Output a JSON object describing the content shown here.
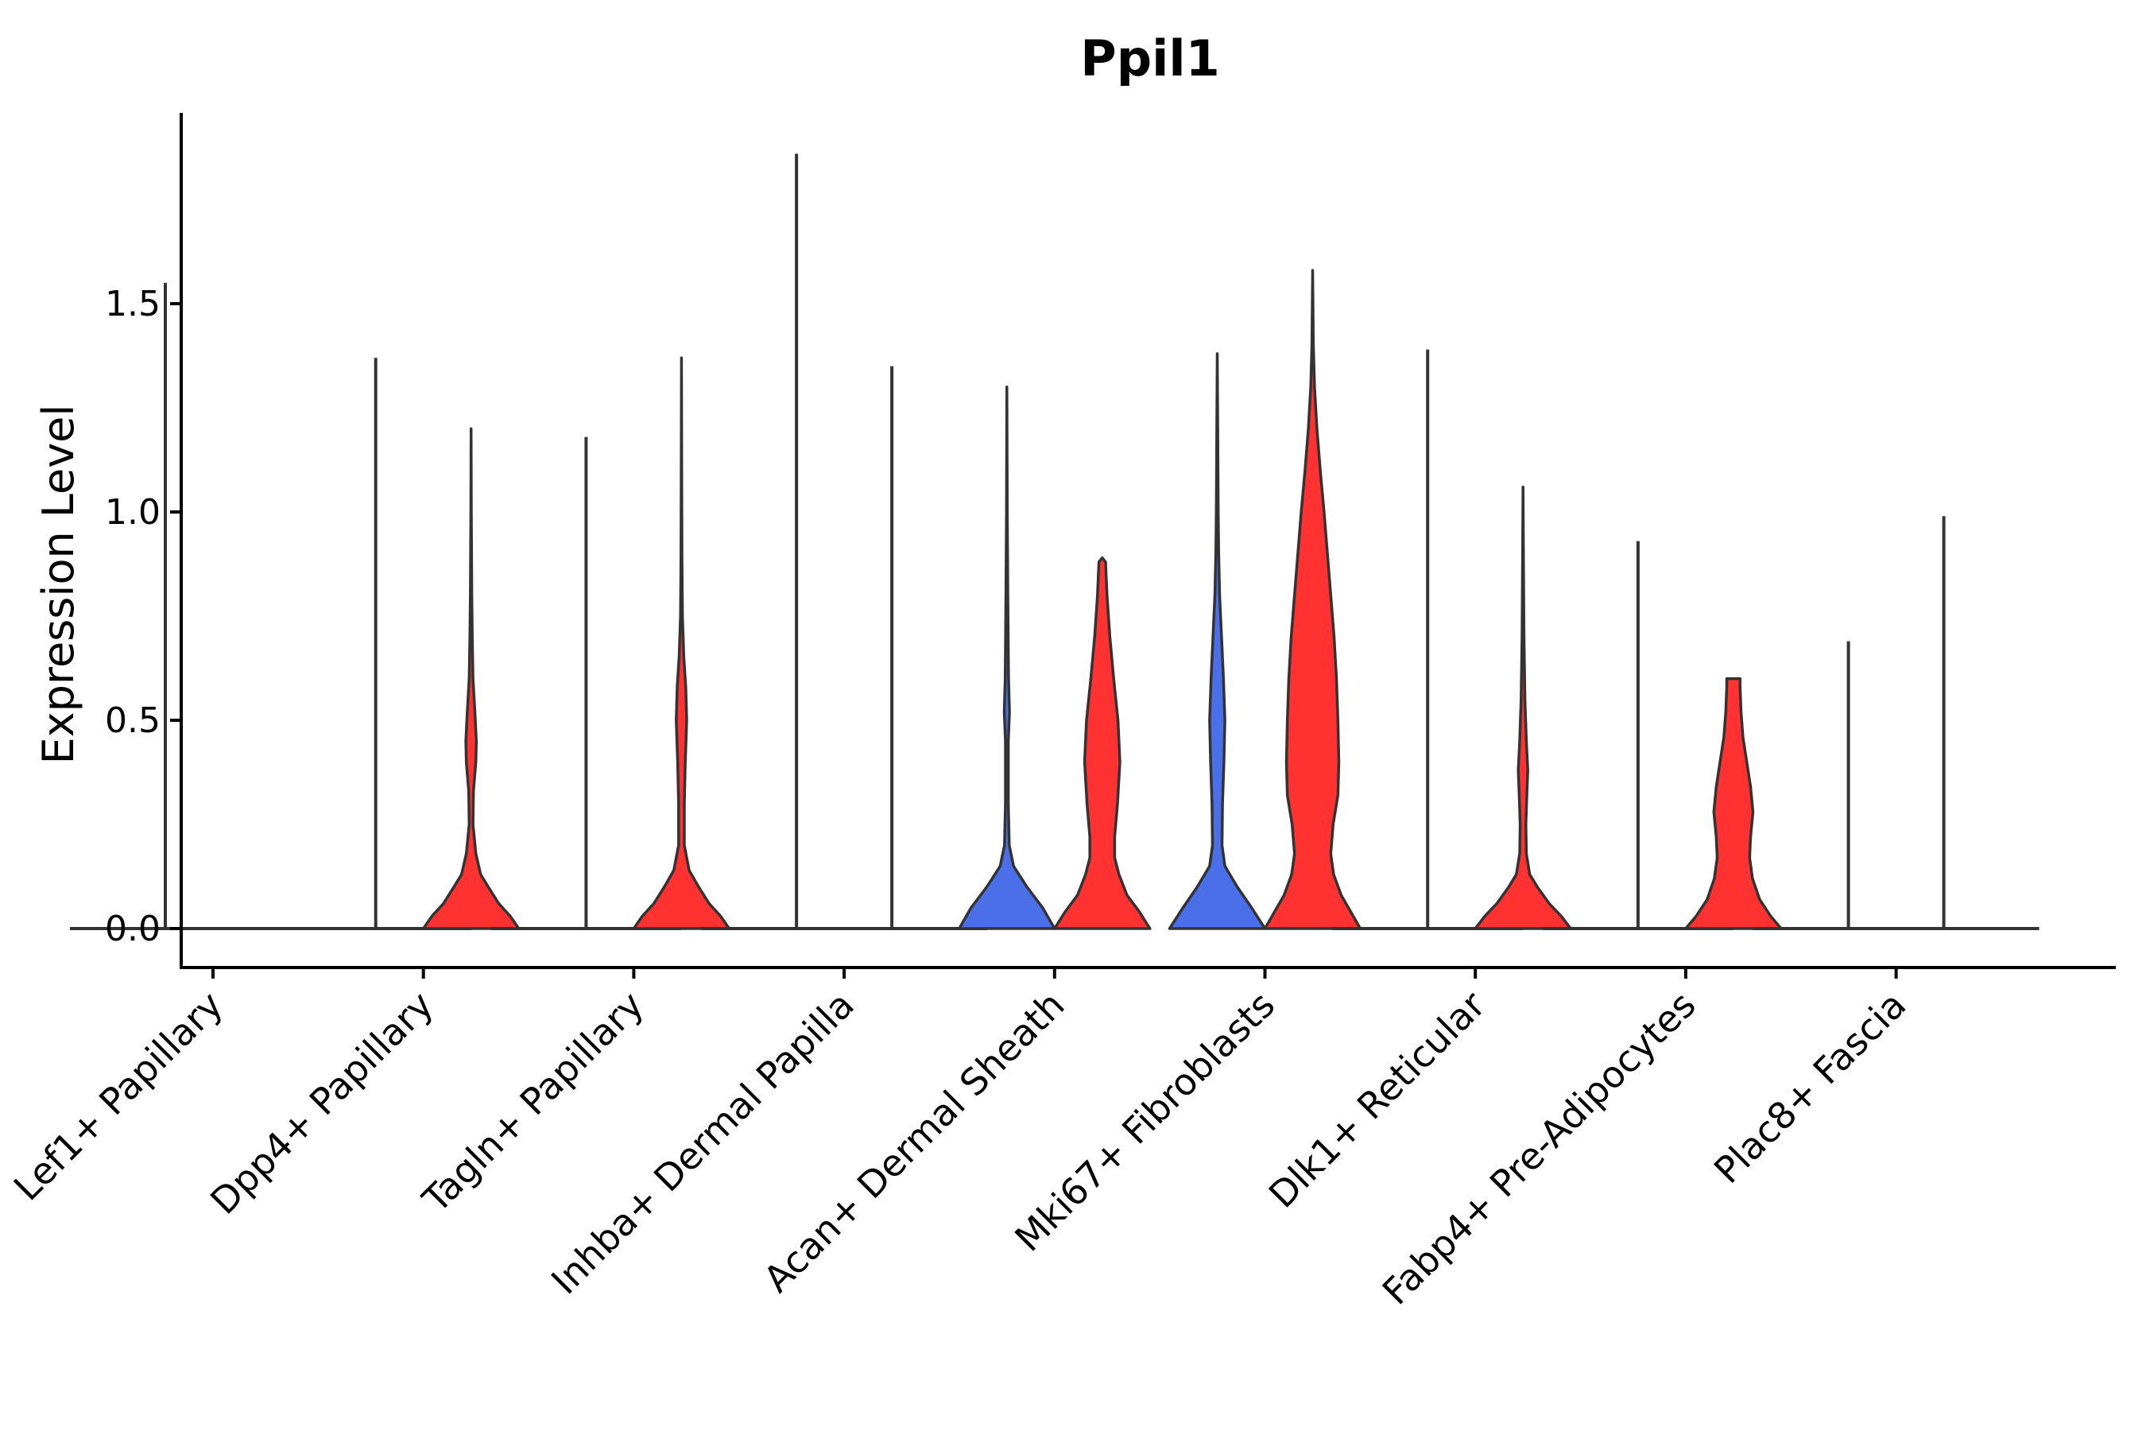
{
  "chart_data": {
    "type": "violin",
    "title": "Ppil1",
    "xlabel": "",
    "ylabel": "Expression Level",
    "ylim": [
      -0.09,
      1.95
    ],
    "yticks": [
      0.0,
      0.5,
      1.0,
      1.5
    ],
    "ytick_labels": [
      "0.0",
      "0.5",
      "1.0",
      "1.5"
    ],
    "grid": false,
    "legend": "none",
    "colors": {
      "group_a": "#4a6fe8",
      "group_b": "#ff3131",
      "outline": "#333333",
      "axis": "#000000"
    },
    "categories": [
      "Lef1+ Papillary",
      "Dpp4+ Papillary",
      "Tagln+ Papillary",
      "Inhba+ Dermal Papilla",
      "Acan+ Dermal Sheath",
      "Mki67+ Fibroblasts",
      "Dlk1+ Reticular",
      "Fabp4+ Pre-Adipocytes",
      "Plac8+ Fascia"
    ],
    "series": [
      {
        "name": "left",
        "color": "#4a6fe8",
        "violins": [
          {
            "max": 1.55,
            "shape": "flat"
          },
          {
            "max": 1.37,
            "shape": "flat"
          },
          {
            "max": 1.18,
            "shape": "flat"
          },
          {
            "max": 1.86,
            "shape": "flat"
          },
          {
            "max": 1.3,
            "shape": [
              [
                0,
                1.0
              ],
              [
                0.05,
                0.75
              ],
              [
                0.1,
                0.42
              ],
              [
                0.15,
                0.14
              ],
              [
                0.2,
                0.05
              ],
              [
                0.3,
                0.03
              ],
              [
                0.45,
                0.03
              ],
              [
                0.52,
                0.055
              ],
              [
                0.6,
                0.035
              ],
              [
                0.8,
                0.02
              ],
              [
                1.0,
                0.008
              ],
              [
                1.3,
                0
              ]
            ]
          },
          {
            "max": 1.38,
            "shape": [
              [
                0,
                1.0
              ],
              [
                0.05,
                0.72
              ],
              [
                0.1,
                0.42
              ],
              [
                0.15,
                0.16
              ],
              [
                0.2,
                0.1
              ],
              [
                0.3,
                0.11
              ],
              [
                0.4,
                0.14
              ],
              [
                0.5,
                0.16
              ],
              [
                0.6,
                0.13
              ],
              [
                0.7,
                0.09
              ],
              [
                0.8,
                0.05
              ],
              [
                0.9,
                0.03
              ],
              [
                1.0,
                0.02
              ],
              [
                1.2,
                0.01
              ],
              [
                1.38,
                0
              ]
            ]
          },
          {
            "max": 1.39,
            "shape": "flat"
          },
          {
            "max": 0.93,
            "shape": "flat"
          },
          {
            "max": 0.69,
            "shape": "flat"
          }
        ]
      },
      {
        "name": "right",
        "color": "#ff3131",
        "violins": [
          {
            "max": 0.0,
            "shape": "flat"
          },
          {
            "max": 1.2,
            "shape": [
              [
                0,
                1.0
              ],
              [
                0.03,
                0.82
              ],
              [
                0.06,
                0.58
              ],
              [
                0.1,
                0.36
              ],
              [
                0.13,
                0.2
              ],
              [
                0.18,
                0.1
              ],
              [
                0.25,
                0.04
              ],
              [
                0.33,
                0.05
              ],
              [
                0.4,
                0.1
              ],
              [
                0.45,
                0.11
              ],
              [
                0.52,
                0.08
              ],
              [
                0.6,
                0.04
              ],
              [
                0.7,
                0.025
              ],
              [
                0.8,
                0.015
              ],
              [
                1.0,
                0.005
              ],
              [
                1.2,
                0
              ]
            ]
          },
          {
            "max": 1.37,
            "shape": [
              [
                0,
                1.0
              ],
              [
                0.03,
                0.82
              ],
              [
                0.06,
                0.58
              ],
              [
                0.1,
                0.36
              ],
              [
                0.14,
                0.16
              ],
              [
                0.2,
                0.06
              ],
              [
                0.3,
                0.06
              ],
              [
                0.4,
                0.08
              ],
              [
                0.5,
                0.11
              ],
              [
                0.58,
                0.09
              ],
              [
                0.65,
                0.05
              ],
              [
                0.75,
                0.02
              ],
              [
                0.9,
                0.01
              ],
              [
                1.1,
                0.005
              ],
              [
                1.37,
                0
              ]
            ]
          },
          {
            "max": 1.35,
            "shape": "flat"
          },
          {
            "max": 0.89,
            "shape": [
              [
                0,
                1.0
              ],
              [
                0.04,
                0.78
              ],
              [
                0.08,
                0.52
              ],
              [
                0.13,
                0.35
              ],
              [
                0.17,
                0.26
              ],
              [
                0.22,
                0.26
              ],
              [
                0.3,
                0.32
              ],
              [
                0.4,
                0.37
              ],
              [
                0.5,
                0.33
              ],
              [
                0.6,
                0.24
              ],
              [
                0.7,
                0.16
              ],
              [
                0.8,
                0.1
              ],
              [
                0.88,
                0.07
              ],
              [
                0.89,
                0
              ]
            ]
          },
          {
            "max": 1.58,
            "shape": [
              [
                0,
                1.0
              ],
              [
                0.04,
                0.8
              ],
              [
                0.08,
                0.6
              ],
              [
                0.13,
                0.44
              ],
              [
                0.18,
                0.38
              ],
              [
                0.25,
                0.43
              ],
              [
                0.32,
                0.53
              ],
              [
                0.4,
                0.55
              ],
              [
                0.5,
                0.53
              ],
              [
                0.6,
                0.5
              ],
              [
                0.7,
                0.45
              ],
              [
                0.8,
                0.38
              ],
              [
                0.9,
                0.31
              ],
              [
                1.0,
                0.24
              ],
              [
                1.1,
                0.16
              ],
              [
                1.2,
                0.09
              ],
              [
                1.3,
                0.04
              ],
              [
                1.4,
                0.015
              ],
              [
                1.58,
                0
              ]
            ]
          },
          {
            "max": 1.06,
            "shape": [
              [
                0,
                1.0
              ],
              [
                0.03,
                0.8
              ],
              [
                0.06,
                0.55
              ],
              [
                0.1,
                0.3
              ],
              [
                0.13,
                0.14
              ],
              [
                0.18,
                0.07
              ],
              [
                0.25,
                0.06
              ],
              [
                0.32,
                0.08
              ],
              [
                0.38,
                0.1
              ],
              [
                0.45,
                0.07
              ],
              [
                0.55,
                0.04
              ],
              [
                0.7,
                0.02
              ],
              [
                0.9,
                0.008
              ],
              [
                1.06,
                0
              ]
            ]
          },
          {
            "max": 0.6,
            "shape": [
              [
                0,
                1.0
              ],
              [
                0.03,
                0.78
              ],
              [
                0.07,
                0.55
              ],
              [
                0.12,
                0.4
              ],
              [
                0.17,
                0.34
              ],
              [
                0.22,
                0.36
              ],
              [
                0.28,
                0.41
              ],
              [
                0.34,
                0.36
              ],
              [
                0.4,
                0.28
              ],
              [
                0.46,
                0.2
              ],
              [
                0.52,
                0.16
              ],
              [
                0.58,
                0.14
              ],
              [
                0.6,
                0.14
              ]
            ]
          },
          {
            "max": 0.99,
            "shape": "flat"
          }
        ]
      }
    ]
  }
}
